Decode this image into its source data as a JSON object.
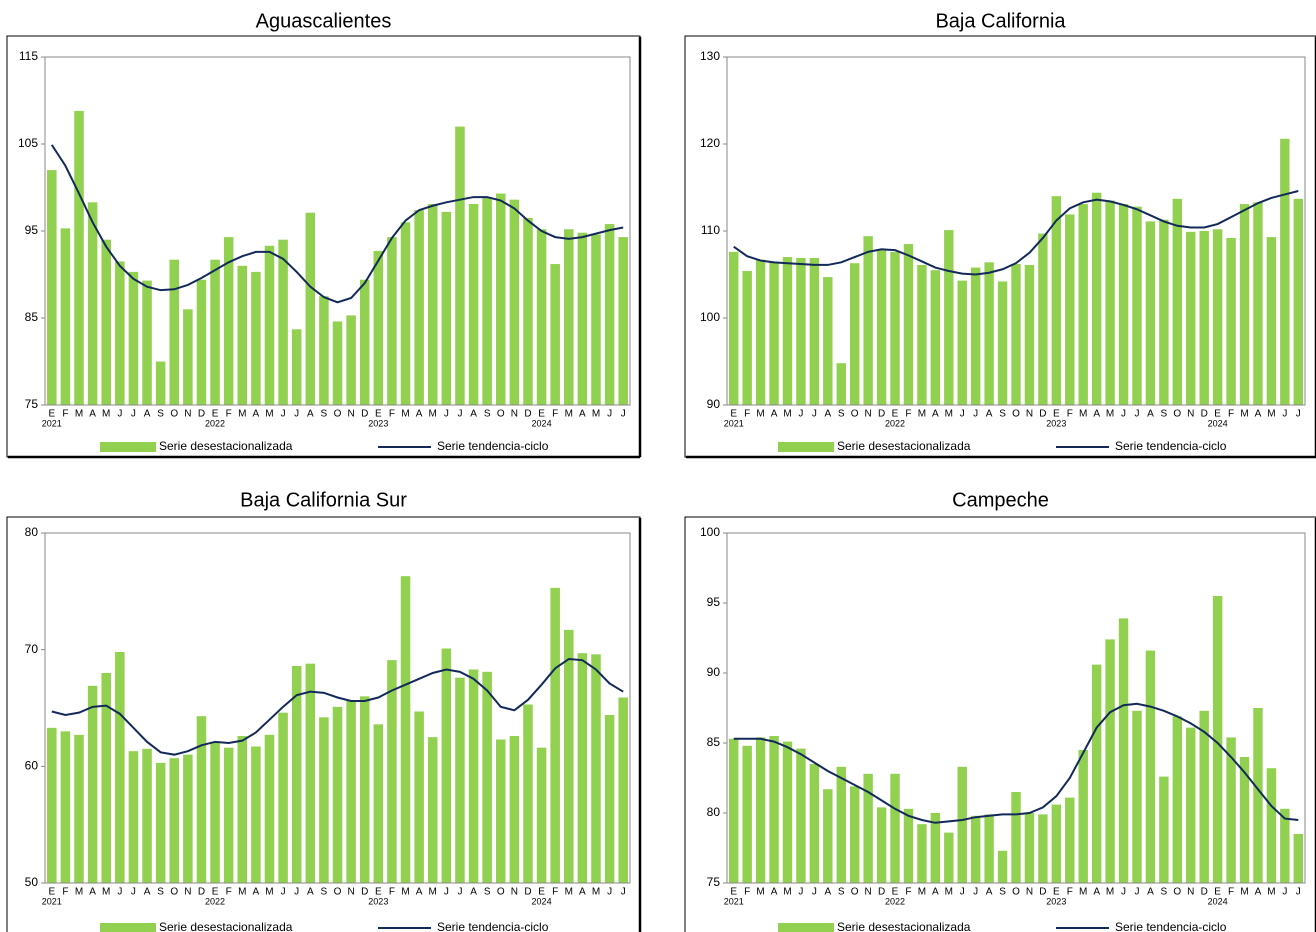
{
  "chart_data": [
    {
      "type": "combo",
      "title": "Aguascalientes",
      "categories": [
        "E",
        "F",
        "M",
        "A",
        "M",
        "J",
        "J",
        "A",
        "S",
        "O",
        "N",
        "D",
        "E",
        "F",
        "M",
        "A",
        "M",
        "J",
        "J",
        "A",
        "S",
        "O",
        "N",
        "D",
        "E",
        "F",
        "M",
        "A",
        "M",
        "J",
        "J",
        "A",
        "S",
        "O",
        "N",
        "D",
        "E",
        "F",
        "M",
        "A",
        "M",
        "J",
        "J"
      ],
      "category_years": [
        "2021",
        null,
        null,
        null,
        null,
        null,
        null,
        null,
        null,
        null,
        null,
        null,
        "2022",
        null,
        null,
        null,
        null,
        null,
        null,
        null,
        null,
        null,
        null,
        null,
        "2023",
        null,
        null,
        null,
        null,
        null,
        null,
        null,
        null,
        null,
        null,
        null,
        "2024",
        null,
        null,
        null,
        null,
        null,
        null
      ],
      "ylim": [
        75,
        115
      ],
      "yticks": [
        75,
        85,
        95,
        105,
        115
      ],
      "series": [
        {
          "name": "Serie desestacionalizada",
          "kind": "bar",
          "color": "#92d050",
          "values": [
            102,
            95.3,
            108.8,
            98.3,
            94,
            91.5,
            90.3,
            89.3,
            80,
            91.7,
            86,
            89.4,
            91.7,
            94.3,
            91,
            90.3,
            93.3,
            94,
            83.7,
            97.1,
            87.5,
            84.6,
            85.3,
            89.4,
            92.7,
            94.3,
            96,
            97.4,
            98.1,
            97.2,
            107,
            98.1,
            98.9,
            99.3,
            98.6,
            96.5,
            95.2,
            91.2,
            95.2,
            94.8,
            94.6,
            95.8,
            94.3
          ]
        },
        {
          "name": "Serie tendencia-ciclo",
          "kind": "line",
          "color": "#12295a",
          "values": [
            104.9,
            102.5,
            99.3,
            96,
            93.2,
            91,
            89.5,
            88.6,
            88.2,
            88.3,
            88.8,
            89.6,
            90.5,
            91.4,
            92.1,
            92.6,
            92.6,
            91.8,
            90.3,
            88.6,
            87.4,
            86.8,
            87.3,
            89,
            91.6,
            94.2,
            96.2,
            97.4,
            97.9,
            98.3,
            98.6,
            98.9,
            98.9,
            98.5,
            97.6,
            96.2,
            95,
            94.3,
            94.1,
            94.3,
            94.7,
            95.1,
            95.4
          ]
        }
      ]
    },
    {
      "type": "combo",
      "title": "Baja California",
      "categories": [
        "E",
        "F",
        "M",
        "A",
        "M",
        "J",
        "J",
        "A",
        "S",
        "O",
        "N",
        "D",
        "E",
        "F",
        "M",
        "A",
        "M",
        "J",
        "J",
        "A",
        "S",
        "O",
        "N",
        "D",
        "E",
        "F",
        "M",
        "A",
        "M",
        "J",
        "J",
        "A",
        "S",
        "O",
        "N",
        "D",
        "E",
        "F",
        "M",
        "A",
        "M",
        "J",
        "J"
      ],
      "category_years": [
        "2021",
        null,
        null,
        null,
        null,
        null,
        null,
        null,
        null,
        null,
        null,
        null,
        "2022",
        null,
        null,
        null,
        null,
        null,
        null,
        null,
        null,
        null,
        null,
        null,
        "2023",
        null,
        null,
        null,
        null,
        null,
        null,
        null,
        null,
        null,
        null,
        null,
        "2024",
        null,
        null,
        null,
        null,
        null,
        null
      ],
      "ylim": [
        90,
        130
      ],
      "yticks": [
        90,
        100,
        110,
        120,
        130
      ],
      "series": [
        {
          "name": "Serie desestacionalizada",
          "kind": "bar",
          "color": "#92d050",
          "values": [
            107.6,
            105.4,
            106.7,
            106.4,
            107,
            106.9,
            106.9,
            104.7,
            94.8,
            106.3,
            109.4,
            107.8,
            107.6,
            108.5,
            106.1,
            105.5,
            110.1,
            104.3,
            105.8,
            106.4,
            104.2,
            106.2,
            106.1,
            109.7,
            114,
            111.9,
            113.1,
            114.4,
            113.5,
            113.1,
            112.8,
            111.1,
            111.3,
            113.7,
            109.9,
            110,
            110.2,
            109.2,
            113.1,
            113.3,
            109.3,
            120.6,
            113.7
          ]
        },
        {
          "name": "Serie tendencia-ciclo",
          "kind": "line",
          "color": "#12295a",
          "values": [
            108.2,
            107.1,
            106.6,
            106.4,
            106.3,
            106.2,
            106.1,
            106.1,
            106.4,
            107,
            107.6,
            107.9,
            107.8,
            107.2,
            106.5,
            105.8,
            105.4,
            105.1,
            105,
            105.2,
            105.6,
            106.3,
            107.5,
            109.2,
            111.2,
            112.6,
            113.3,
            113.6,
            113.4,
            113,
            112.5,
            111.8,
            111.1,
            110.6,
            110.4,
            110.4,
            110.8,
            111.6,
            112.4,
            113.2,
            113.8,
            114.2,
            114.6
          ]
        }
      ]
    },
    {
      "type": "combo",
      "title": "Baja California Sur",
      "categories": [
        "E",
        "F",
        "M",
        "A",
        "M",
        "J",
        "J",
        "A",
        "S",
        "O",
        "N",
        "D",
        "E",
        "F",
        "M",
        "A",
        "M",
        "J",
        "J",
        "A",
        "S",
        "O",
        "N",
        "D",
        "E",
        "F",
        "M",
        "A",
        "M",
        "J",
        "J",
        "A",
        "S",
        "O",
        "N",
        "D",
        "E",
        "F",
        "M",
        "A",
        "M",
        "J",
        "J"
      ],
      "category_years": [
        "2021",
        null,
        null,
        null,
        null,
        null,
        null,
        null,
        null,
        null,
        null,
        null,
        "2022",
        null,
        null,
        null,
        null,
        null,
        null,
        null,
        null,
        null,
        null,
        null,
        "2023",
        null,
        null,
        null,
        null,
        null,
        null,
        null,
        null,
        null,
        null,
        null,
        "2024",
        null,
        null,
        null,
        null,
        null,
        null
      ],
      "ylim": [
        50,
        80
      ],
      "yticks": [
        50,
        60,
        70,
        80
      ],
      "series": [
        {
          "name": "Serie desestacionalizada",
          "kind": "bar",
          "color": "#92d050",
          "values": [
            63.3,
            63,
            62.7,
            66.9,
            68,
            69.8,
            61.3,
            61.5,
            60.3,
            60.7,
            61,
            64.3,
            62.1,
            61.6,
            62.6,
            61.7,
            62.7,
            64.6,
            68.6,
            68.8,
            64.2,
            65.1,
            65.6,
            66,
            63.6,
            69.1,
            76.3,
            64.7,
            62.5,
            70.1,
            67.6,
            68.3,
            68.1,
            62.3,
            62.6,
            65.3,
            61.6,
            75.3,
            71.7,
            69.7,
            69.6,
            64.4,
            65.9
          ]
        },
        {
          "name": "Serie tendencia-ciclo",
          "kind": "line",
          "color": "#12295a",
          "values": [
            64.7,
            64.4,
            64.6,
            65.1,
            65.2,
            64.5,
            63.3,
            62.1,
            61.2,
            61,
            61.3,
            61.8,
            62.1,
            62,
            62.2,
            62.9,
            64,
            65.1,
            66.1,
            66.4,
            66.3,
            65.9,
            65.6,
            65.6,
            65.9,
            66.5,
            67,
            67.5,
            68,
            68.3,
            68.1,
            67.5,
            66.5,
            65.1,
            64.8,
            65.7,
            67,
            68.4,
            69.2,
            69.1,
            68.3,
            67.1,
            66.4
          ]
        }
      ]
    },
    {
      "type": "combo",
      "title": "Campeche",
      "categories": [
        "E",
        "F",
        "M",
        "A",
        "M",
        "J",
        "J",
        "A",
        "S",
        "O",
        "N",
        "D",
        "E",
        "F",
        "M",
        "A",
        "M",
        "J",
        "J",
        "A",
        "S",
        "O",
        "N",
        "D",
        "E",
        "F",
        "M",
        "A",
        "M",
        "J",
        "J",
        "A",
        "S",
        "O",
        "N",
        "D",
        "E",
        "F",
        "M",
        "A",
        "M",
        "J",
        "J"
      ],
      "category_years": [
        "2021",
        null,
        null,
        null,
        null,
        null,
        null,
        null,
        null,
        null,
        null,
        null,
        "2022",
        null,
        null,
        null,
        null,
        null,
        null,
        null,
        null,
        null,
        null,
        null,
        "2023",
        null,
        null,
        null,
        null,
        null,
        null,
        null,
        null,
        null,
        null,
        null,
        "2024",
        null,
        null,
        null,
        null,
        null,
        null
      ],
      "ylim": [
        75,
        100
      ],
      "yticks": [
        75,
        80,
        85,
        90,
        95,
        100
      ],
      "series": [
        {
          "name": "Serie desestacionalizada",
          "kind": "bar",
          "color": "#92d050",
          "values": [
            85.3,
            84.8,
            85.4,
            85.5,
            85.1,
            84.6,
            83.5,
            81.7,
            83.3,
            81.9,
            82.8,
            80.4,
            82.8,
            80.3,
            79.2,
            80,
            78.6,
            83.3,
            79.8,
            79.9,
            77.3,
            81.5,
            80,
            79.9,
            80.6,
            81.1,
            84.5,
            90.6,
            92.4,
            93.9,
            87.3,
            91.6,
            82.6,
            86.9,
            86.1,
            87.3,
            95.5,
            85.4,
            84,
            87.5,
            83.2,
            80.3,
            78.5
          ]
        },
        {
          "name": "Serie tendencia-ciclo",
          "kind": "line",
          "color": "#12295a",
          "values": [
            85.3,
            85.3,
            85.3,
            85.1,
            84.7,
            84.2,
            83.6,
            83,
            82.5,
            82,
            81.5,
            80.9,
            80.3,
            79.8,
            79.5,
            79.3,
            79.4,
            79.5,
            79.7,
            79.8,
            79.9,
            79.9,
            80,
            80.4,
            81.2,
            82.5,
            84.3,
            86.1,
            87.2,
            87.7,
            87.8,
            87.6,
            87.3,
            86.9,
            86.4,
            85.8,
            85,
            84,
            82.9,
            81.7,
            80.5,
            79.6,
            79.5
          ]
        }
      ]
    }
  ]
}
